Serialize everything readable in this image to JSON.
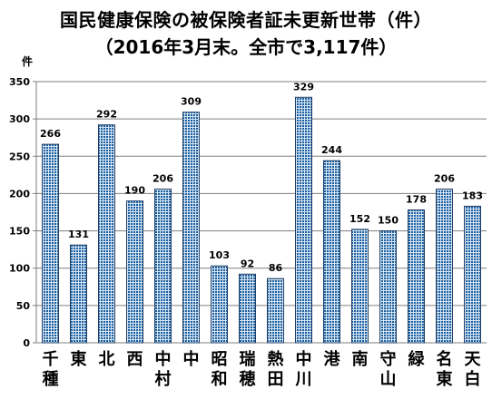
{
  "chart_data": {
    "type": "bar",
    "title": "国民健康保険の被保険者証未更新世帯（件）",
    "subtitle": "（2016年3月末。全市で3,117件）",
    "ylabel": "件",
    "xlabel": "",
    "ylim": [
      0,
      350
    ],
    "yticks": [
      0,
      50,
      100,
      150,
      200,
      250,
      300,
      350
    ],
    "grid": true,
    "categories": [
      "千種",
      "東",
      "北",
      "西",
      "中村",
      "中",
      "昭和",
      "瑞穂",
      "熱田",
      "中川",
      "港",
      "南",
      "守山",
      "緑",
      "名東",
      "天白"
    ],
    "values": [
      266,
      131,
      292,
      190,
      206,
      309,
      103,
      92,
      86,
      329,
      244,
      152,
      150,
      178,
      206,
      183
    ],
    "colors": {
      "bar_fill": "#1e5f9e",
      "bar_stroke": "#1f3f66",
      "grid": "#7f7f7f",
      "axis": "#7f7f7f"
    }
  }
}
